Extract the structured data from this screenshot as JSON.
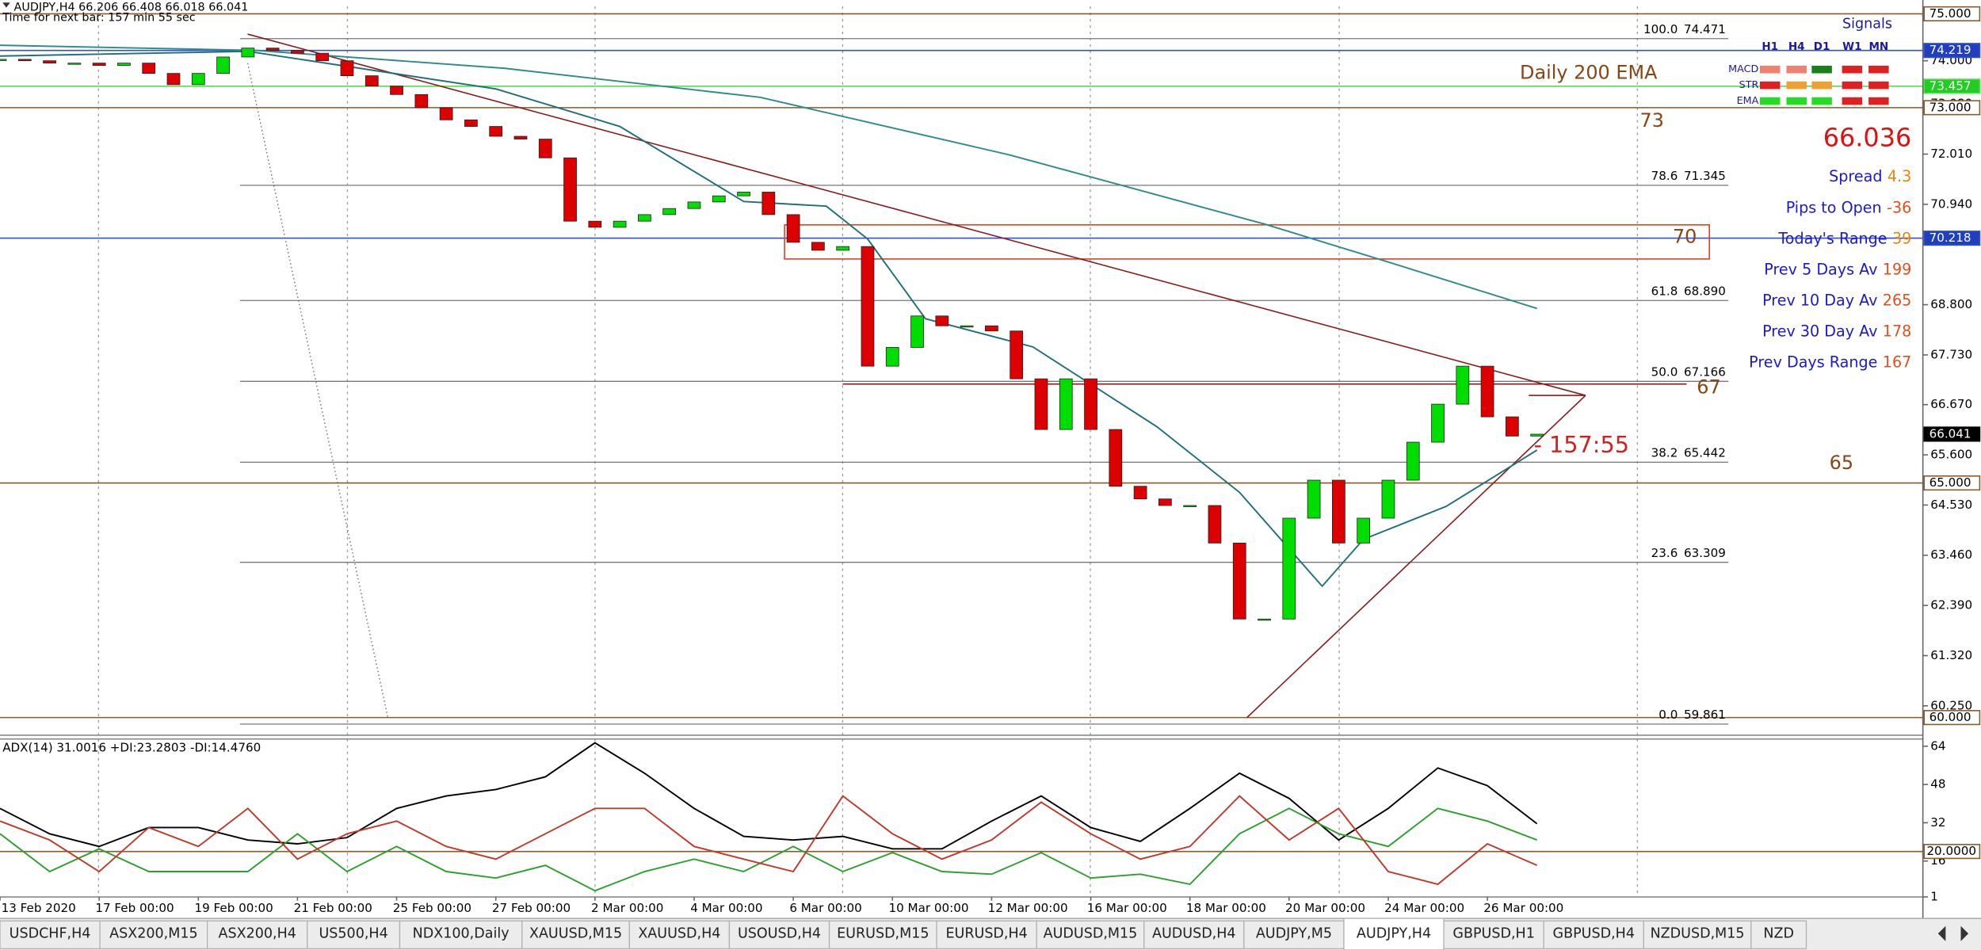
{
  "window": {
    "header": "AUDJPY,H4  66.206 66.408 66.018 66.041",
    "timer": "Time for next bar: 157 min 55 sec"
  },
  "chart_data": [
    {
      "type": "candlestick",
      "xlim": [
        0,
        232.7
      ],
      "ylim": [
        59.677,
        75.16
      ],
      "xticks": [
        {
          "value": 0,
          "label": "13 Feb 2020"
        },
        {
          "value": 12,
          "label": "17 Feb 00:00"
        },
        {
          "value": 24,
          "label": "19 Feb 00:00"
        },
        {
          "value": 36,
          "label": "21 Feb 00:00"
        },
        {
          "value": 48,
          "label": "25 Feb 00:00"
        },
        {
          "value": 60,
          "label": "27 Feb 00:00"
        },
        {
          "value": 72,
          "label": "2 Mar 00:00"
        },
        {
          "value": 84,
          "label": "4 Mar 00:00"
        },
        {
          "value": 96,
          "label": "6 Mar 00:00"
        },
        {
          "value": 108,
          "label": "10 Mar 00:00"
        },
        {
          "value": 120,
          "label": "12 Mar 00:00"
        },
        {
          "value": 132,
          "label": "16 Mar 00:00"
        },
        {
          "value": 144,
          "label": "18 Mar 00:00"
        },
        {
          "value": 156,
          "label": "20 Mar 00:00"
        },
        {
          "value": 168,
          "label": "24 Mar 00:00"
        },
        {
          "value": 180,
          "label": "26 Mar 00:00"
        }
      ],
      "yticks": [
        {
          "value": 74,
          "label": "74.000"
        },
        {
          "value": 73.08,
          "label": "73.080"
        },
        {
          "value": 72.01,
          "label": "72.010"
        },
        {
          "value": 70.94,
          "label": "70.940"
        },
        {
          "value": 68.8,
          "label": "68.800"
        },
        {
          "value": 67.73,
          "label": "67.730"
        },
        {
          "value": 66.67,
          "label": "66.670"
        },
        {
          "value": 65.6,
          "label": "65.600"
        },
        {
          "value": 64.53,
          "label": "64.530"
        },
        {
          "value": 63.46,
          "label": "63.460"
        },
        {
          "value": 62.39,
          "label": "62.390"
        },
        {
          "value": 61.32,
          "label": "61.320"
        },
        {
          "value": 60.25,
          "label": "60.250"
        }
      ],
      "price_markers": [
        {
          "value": 75,
          "label": "75.000",
          "fill": "#ffffff",
          "text_color": "#000000",
          "line_color": "#8b5a2b"
        },
        {
          "value": 74.219,
          "label": "74.219",
          "fill": "#1f3fbf",
          "text_color": "#ffffff",
          "line_color": "#3050d0"
        },
        {
          "value": 73.457,
          "label": "73.457",
          "fill": "#22cc22",
          "text_color": "#ffffff",
          "line_color": "#55dd55"
        },
        {
          "value": 73,
          "label": "73.000",
          "fill": "#ffffff",
          "text_color": "#000000",
          "line_color": "#8b5a2b"
        },
        {
          "value": 70.218,
          "label": "70.218",
          "fill": "#1f3fbf",
          "text_color": "#ffffff",
          "line_color": "#3050d0"
        },
        {
          "value": 66.041,
          "label": "66.041",
          "fill": "#000000",
          "text_color": "#ffffff"
        },
        {
          "value": 65,
          "label": "65.000",
          "fill": "#ffffff",
          "text_color": "#000000",
          "line_color": "#8b5a2b"
        },
        {
          "value": 60,
          "label": "60.000",
          "fill": "#ffffff",
          "text_color": "#000000",
          "line_color": "#8b5a2b"
        }
      ],
      "fib_levels": [
        {
          "ratio": {
            "value": 100,
            "label": "100.0"
          },
          "price": 74.471
        },
        {
          "ratio": 78.6,
          "price": 71.345
        },
        {
          "ratio": 61.8,
          "price": {
            "value": 68.89,
            "label": "68.890"
          }
        },
        {
          "ratio": {
            "value": 50,
            "label": "50.0"
          },
          "price": 67.166
        },
        {
          "ratio": 38.2,
          "price": 65.442
        },
        {
          "ratio": 23.6,
          "price": 63.309
        },
        {
          "ratio": {
            "value": 0,
            "label": "0.0"
          },
          "price": 59.861
        }
      ],
      "x": [
        0,
        3,
        6,
        9,
        12,
        15,
        18,
        21,
        24,
        27,
        30,
        33,
        36,
        39,
        42,
        45,
        48,
        51,
        54,
        57,
        60,
        63,
        66,
        69,
        72,
        75,
        78,
        81,
        84,
        87,
        90,
        93,
        96,
        99,
        102,
        105,
        108,
        111,
        114,
        117,
        120,
        123,
        126,
        129,
        132,
        135,
        138,
        141,
        144,
        147,
        150,
        153,
        156,
        159,
        162,
        165,
        168,
        171,
        174,
        177,
        180,
        183,
        186
      ],
      "values": [
        74.03,
        74.0,
        73.95,
        73.95,
        73.9,
        73.95,
        73.73,
        73.49,
        73.73,
        74.08,
        74.27,
        74.22,
        74.16,
        74.0,
        73.68,
        73.46,
        73.28,
        73.0,
        72.74,
        72.6,
        72.39,
        72.33,
        71.93,
        70.58,
        70.45,
        70.58,
        70.72,
        70.85,
        70.99,
        71.12,
        71.2,
        70.72,
        70.13,
        69.96,
        70.04,
        67.49,
        67.89,
        68.56,
        68.35,
        68.35,
        68.24,
        67.22,
        66.14,
        67.22,
        66.14,
        64.93,
        64.66,
        64.52,
        64.52,
        63.72,
        62.1,
        62.1,
        64.25,
        65.06,
        63.72,
        64.25,
        65.06,
        65.87,
        66.68,
        67.49,
        66.41,
        66.0,
        66.04
      ],
      "up_color": "#00dd00",
      "down_color": "#dd0000",
      "overlays": [
        {
          "color": "#2e8b8b",
          "x": [
            0,
            31,
            61,
            92,
            122,
            153,
            168,
            186
          ],
          "values": [
            74.33,
            74.22,
            73.84,
            73.22,
            72.0,
            70.52,
            69.71,
            68.72
          ]
        },
        {
          "color": "#1f6f7a",
          "x": [
            0,
            30,
            60,
            75,
            90,
            100,
            105,
            112,
            125,
            140,
            150,
            155,
            160,
            165,
            175,
            186
          ],
          "values": [
            74.1,
            74.2,
            73.4,
            72.6,
            71.0,
            70.9,
            70.2,
            68.5,
            67.9,
            66.2,
            64.8,
            63.8,
            62.8,
            63.8,
            64.5,
            65.7
          ]
        }
      ],
      "annotations": [
        "Daily 200 EMA",
        "73",
        "70",
        "67",
        "65",
        "- 157:55"
      ]
    },
    {
      "type": "line",
      "title": "ADX(14) 31.0016 +DI:23.2803 -DI:14.4760",
      "ylim": [
        1,
        67
      ],
      "yticks": [
        64,
        48,
        32,
        16,
        1
      ],
      "level": {
        "value": 20,
        "label": "20.0000",
        "color": "#8b5a2b"
      },
      "x": [
        0,
        6,
        12,
        18,
        24,
        30,
        36,
        42,
        48,
        54,
        60,
        66,
        72,
        78,
        84,
        90,
        96,
        102,
        108,
        114,
        120,
        126,
        132,
        138,
        144,
        150,
        156,
        162,
        168,
        174,
        180,
        186
      ],
      "series": [
        {
          "color": "#000000",
          "values": [
            38.0,
            27.4,
            22.1,
            30.0,
            30.0,
            24.8,
            23.2,
            25.8,
            38.0,
            43.2,
            45.9,
            51.2,
            65.4,
            52.7,
            38.0,
            26.3,
            24.8,
            26.3,
            21.1,
            21.1,
            32.7,
            43.2,
            30.0,
            24.2,
            38.0,
            52.7,
            42.2,
            24.8,
            38.0,
            54.9,
            47.5,
            31.6
          ]
        },
        {
          "color": "#2ca02c",
          "values": [
            27.4,
            11.6,
            21.1,
            11.6,
            11.6,
            11.6,
            27.4,
            11.6,
            22.1,
            11.6,
            8.9,
            14.2,
            3.6,
            11.6,
            16.8,
            11.6,
            22.1,
            11.6,
            19.5,
            11.6,
            10.5,
            19.5,
            8.9,
            10.5,
            6.3,
            27.4,
            38.0,
            27.4,
            22.1,
            38.0,
            32.7,
            24.8
          ]
        },
        {
          "color": "#c0392b",
          "values": [
            32.7,
            24.8,
            11.6,
            30.0,
            22.1,
            38.0,
            16.8,
            27.4,
            32.7,
            22.1,
            16.8,
            27.4,
            38.0,
            38.0,
            22.1,
            16.8,
            11.6,
            43.2,
            27.4,
            16.8,
            24.8,
            40.6,
            27.4,
            16.8,
            22.1,
            43.2,
            24.8,
            38.0,
            11.6,
            6.3,
            23.2,
            14.2
          ]
        }
      ]
    }
  ],
  "signals": {
    "title": "Signals",
    "columns": [
      "H1",
      "H4",
      "D1",
      "W1",
      "MN"
    ],
    "rows": [
      {
        "label": "MACD",
        "colors": [
          "#f08070",
          "#f08070",
          "#1a7f1a",
          "#e02020",
          "#e02020"
        ]
      },
      {
        "label": "STR",
        "colors": [
          "#e02020",
          "#f0a030",
          "#f0a030",
          "#e02020",
          "#e02020"
        ]
      },
      {
        "label": "EMA",
        "colors": [
          "#22dd22",
          "#22dd22",
          "#22dd22",
          "#e02020",
          "#e02020"
        ]
      }
    ],
    "price": 66.036,
    "stats": [
      {
        "label": "Spread",
        "value": 4.3,
        "color": "#e8860a"
      },
      {
        "label": "Pips to Open",
        "value": -36,
        "color": "#e0501e"
      },
      {
        "label": "Today's Range",
        "value": 39,
        "color": "#e8860a"
      },
      {
        "label": "Prev 5 Days Av",
        "value": 199,
        "color": "#e0501e"
      },
      {
        "label": "Prev 10 Day Av",
        "value": 265,
        "color": "#e0501e"
      },
      {
        "label": "Prev 30 Day Av",
        "value": 178,
        "color": "#e0501e"
      },
      {
        "label": "Prev Days Range",
        "value": 167,
        "color": "#e0501e"
      }
    ]
  },
  "tabs": [
    "USDCHF,H4",
    "ASX200,M15",
    "ASX200,H4",
    "US500,H4",
    "NDX100,Daily",
    "XAUUSD,M15",
    "XAUUSD,H4",
    "USOUSD,H4",
    "EURUSD,M15",
    "EURUSD,H4",
    "AUDUSD,M15",
    "AUDUSD,H4",
    "AUDJPY,M5",
    "AUDJPY,H4",
    "GBPUSD,H1",
    "GBPUSD,H4",
    "NZDUSD,M15",
    "NZD"
  ],
  "active_tab": "AUDJPY,H4"
}
